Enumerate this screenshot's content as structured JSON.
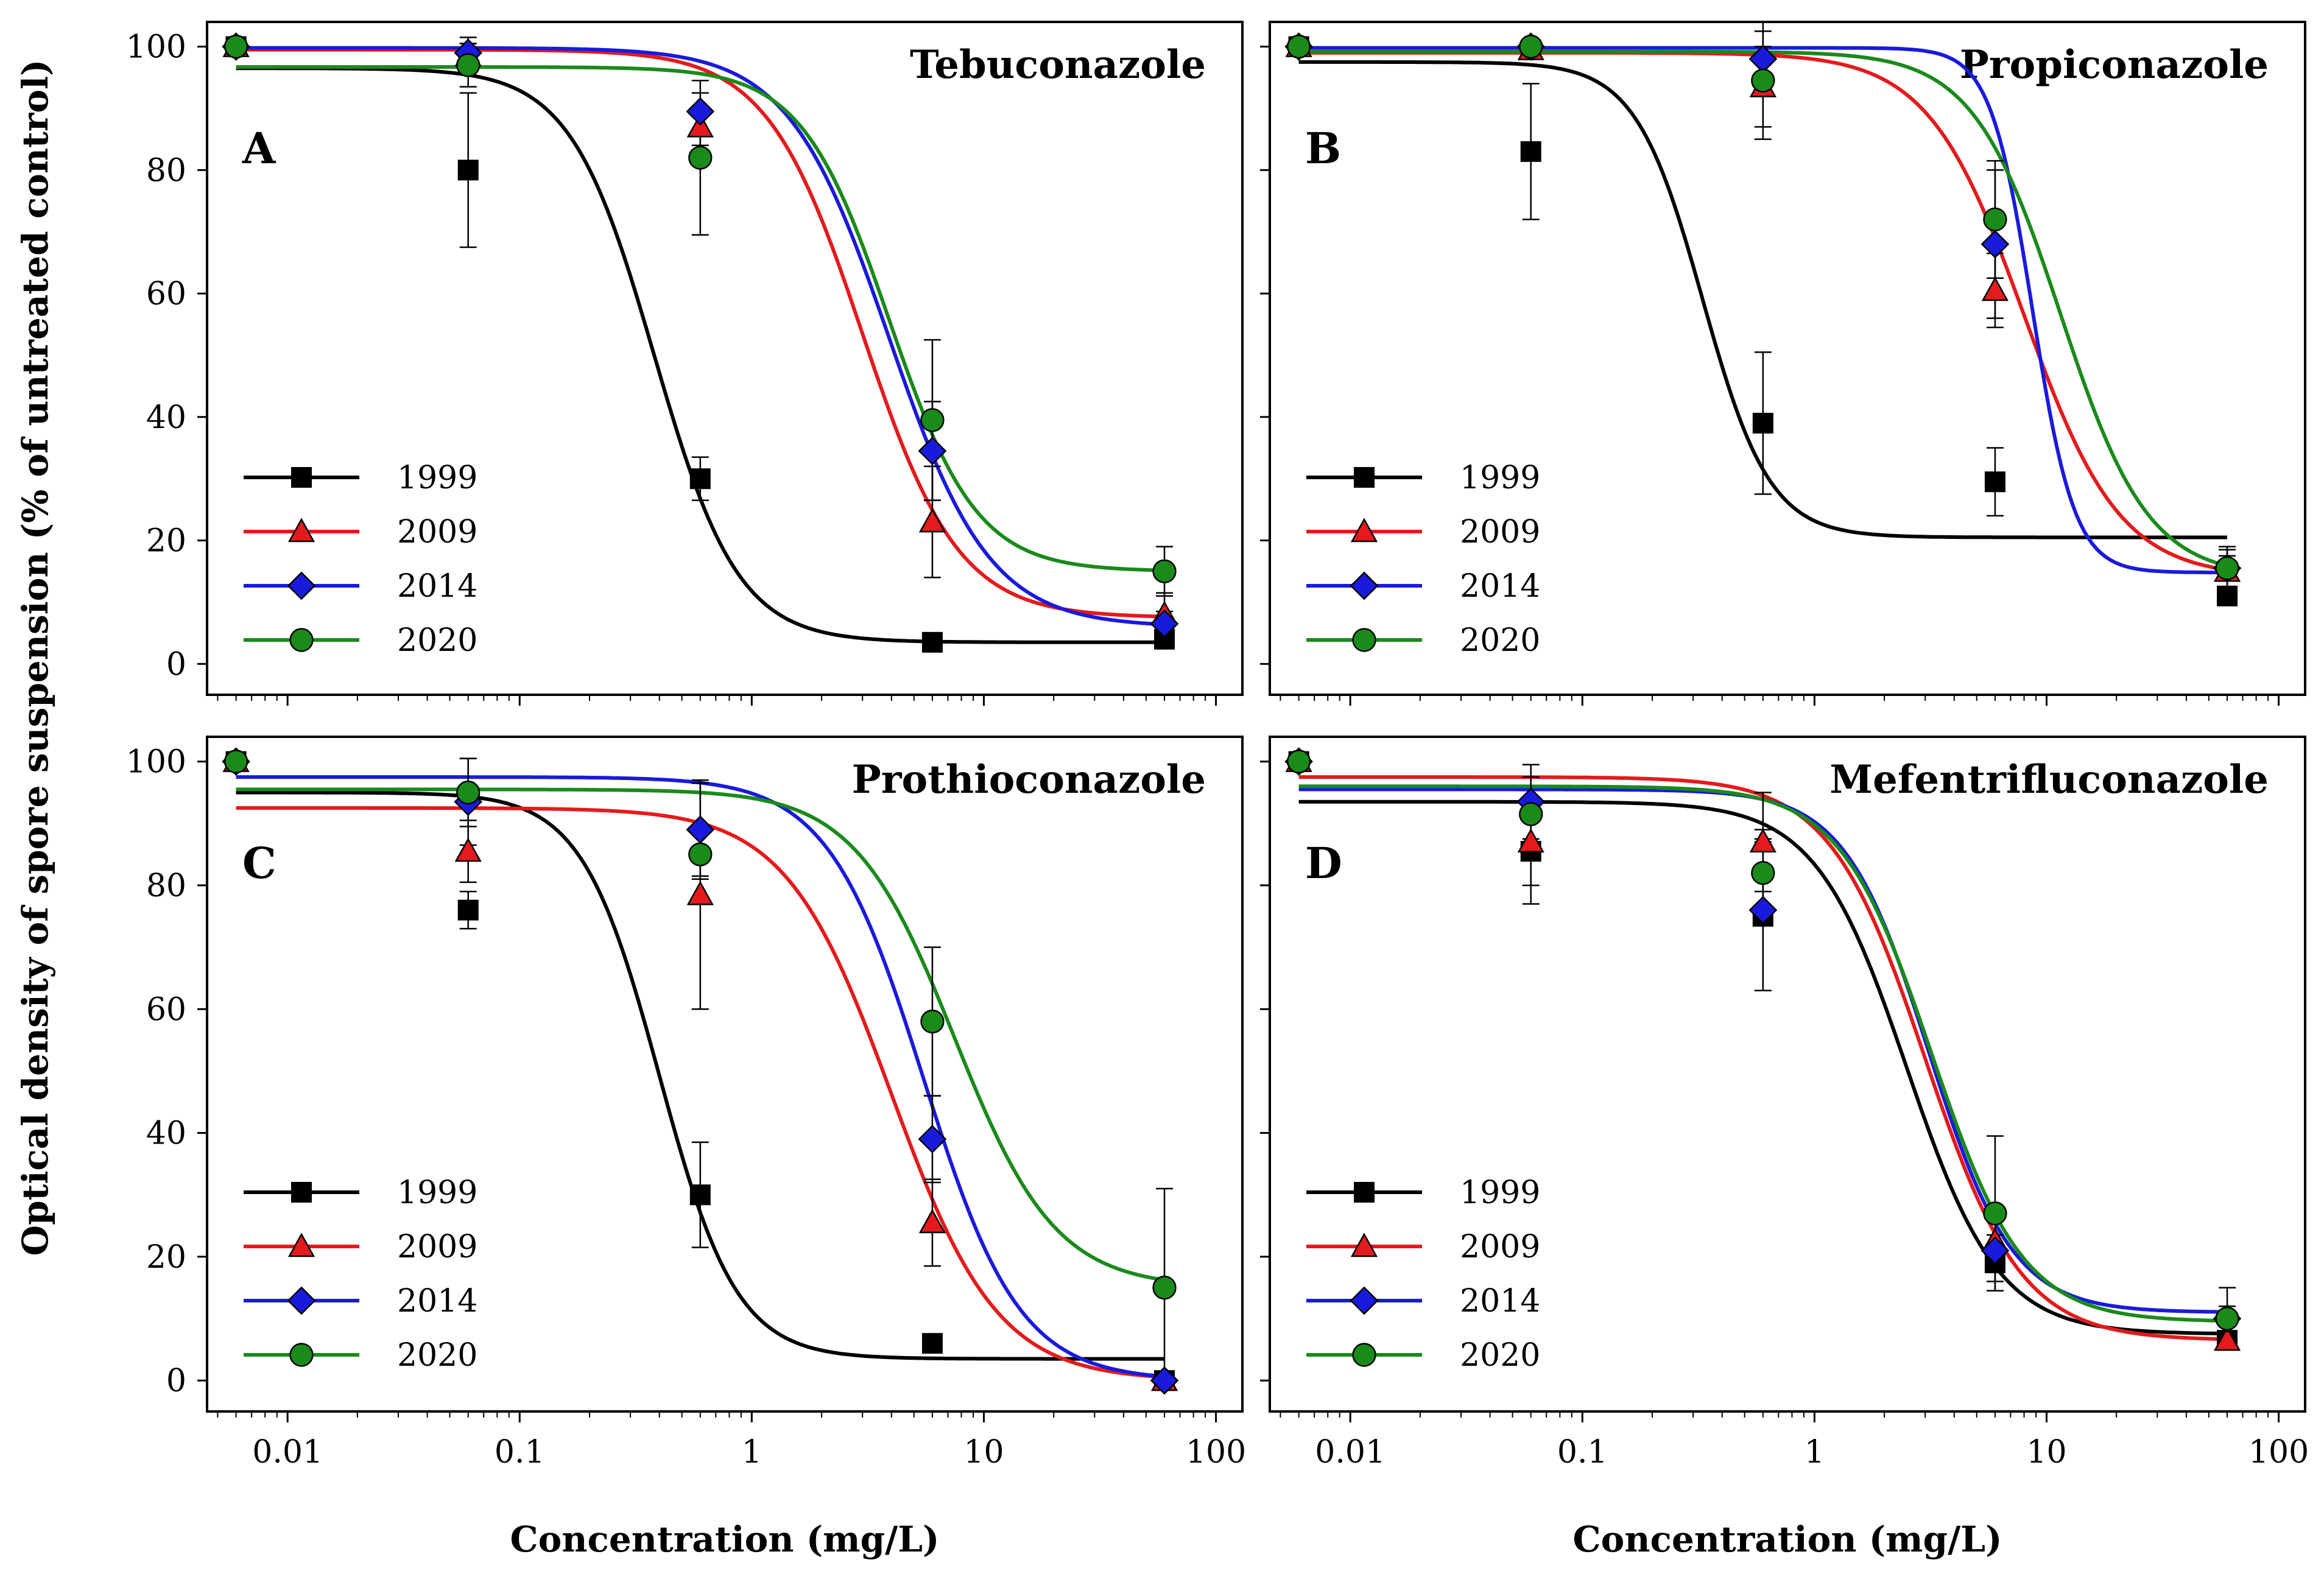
{
  "figure": {
    "y_axis_label": "Optical density of spore suspension (% of untreated control)",
    "x_axis_label": "Concentration (mg/L)"
  },
  "series_colors": {
    "1999": "#000000",
    "2009": "#e41a1c",
    "2014": "#1a1adc",
    "2020": "#1a8a1a"
  },
  "series_markers": {
    "1999": "square",
    "2009": "triangle",
    "2014": "diamond",
    "2020": "circle"
  },
  "chart_data": [
    {
      "type": "scatter",
      "title": "Tebuconazole",
      "letter": "A",
      "xscale": "log",
      "xlim": [
        0.0045,
        130
      ],
      "ylim": [
        -5,
        104
      ],
      "xticks": [
        0.01,
        0.1,
        1,
        10,
        100
      ],
      "xtick_labels": [
        "0.01",
        "0.1",
        "1",
        "10",
        "100"
      ],
      "yticks": [
        0,
        20,
        40,
        60,
        80,
        100
      ],
      "ytick_labels": [
        "0",
        "20",
        "40",
        "60",
        "80",
        "100"
      ],
      "show_x_tick_labels": false,
      "show_y_tick_labels": true,
      "show_x_label": false,
      "x": [
        0.006,
        0.06,
        0.6,
        6,
        60
      ],
      "series": [
        {
          "name": "1999",
          "values": [
            100,
            80,
            30,
            3.5,
            4
          ],
          "errors": [
            0,
            12.5,
            3.5,
            0,
            0
          ],
          "curve": {
            "bottom": 3.5,
            "top": 96.5,
            "ec50": 0.38,
            "slope": 2.4
          }
        },
        {
          "name": "2009",
          "values": [
            100,
            98.5,
            87,
            23,
            8
          ],
          "errors": [
            0,
            2,
            3,
            9,
            3.5
          ],
          "curve": {
            "bottom": 7.5,
            "top": 99.5,
            "ec50": 3.0,
            "slope": 2.1
          }
        },
        {
          "name": "2014",
          "values": [
            100,
            99,
            89.5,
            34.5,
            6.5
          ],
          "errors": [
            0,
            2.5,
            3,
            8,
            2
          ],
          "curve": {
            "bottom": 6,
            "top": 99.8,
            "ec50": 3.9,
            "slope": 2.0
          }
        },
        {
          "name": "2020",
          "values": [
            100,
            97,
            82,
            39.5,
            15
          ],
          "errors": [
            0,
            3.5,
            12.5,
            13,
            4
          ],
          "curve": {
            "bottom": 15,
            "top": 96.7,
            "ec50": 3.9,
            "slope": 2.3
          }
        }
      ]
    },
    {
      "type": "scatter",
      "title": "Propiconazole",
      "letter": "B",
      "xscale": "log",
      "xlim": [
        0.0045,
        130
      ],
      "ylim": [
        -5,
        104
      ],
      "xticks": [
        0.01,
        0.1,
        1,
        10,
        100
      ],
      "xtick_labels": [
        "0.01",
        "0.1",
        "1",
        "10",
        "100"
      ],
      "yticks": [
        0,
        20,
        40,
        60,
        80,
        100
      ],
      "ytick_labels": [
        "0",
        "20",
        "40",
        "60",
        "80",
        "100"
      ],
      "show_x_tick_labels": false,
      "show_y_tick_labels": false,
      "show_x_label": false,
      "x": [
        0.006,
        0.06,
        0.6,
        6,
        60
      ],
      "series": [
        {
          "name": "1999",
          "values": [
            100,
            83,
            39,
            29.5,
            11
          ],
          "errors": [
            0,
            11,
            11.5,
            5.5,
            1.5
          ],
          "curve": {
            "bottom": 20.5,
            "top": 97.5,
            "ec50": 0.33,
            "slope": 3.0
          }
        },
        {
          "name": "2009",
          "values": [
            100,
            99.5,
            93.5,
            60.5,
            15
          ],
          "errors": [
            0,
            1,
            6.5,
            6,
            4
          ],
          "curve": {
            "bottom": 14,
            "top": 99,
            "ec50": 8.0,
            "slope": 2.1
          }
        },
        {
          "name": "2014",
          "values": [
            100,
            100,
            98,
            68,
            15.5
          ],
          "errors": [
            0,
            0,
            4.5,
            12,
            3
          ],
          "curve": {
            "bottom": 14.8,
            "top": 99.8,
            "ec50": 8.7,
            "slope": 4.8
          }
        },
        {
          "name": "2020",
          "values": [
            100,
            100,
            94.5,
            72,
            15.5
          ],
          "errors": [
            0,
            0,
            9.5,
            9.5,
            2
          ],
          "curve": {
            "bottom": 14,
            "top": 99.2,
            "ec50": 11.5,
            "slope": 2.3
          }
        }
      ]
    },
    {
      "type": "scatter",
      "title": "Prothioconazole",
      "letter": "C",
      "xscale": "log",
      "xlim": [
        0.0045,
        130
      ],
      "ylim": [
        -5,
        104
      ],
      "xticks": [
        0.01,
        0.1,
        1,
        10,
        100
      ],
      "xtick_labels": [
        "0.01",
        "0.1",
        "1",
        "10",
        "100"
      ],
      "yticks": [
        0,
        20,
        40,
        60,
        80,
        100
      ],
      "ytick_labels": [
        "0",
        "20",
        "40",
        "60",
        "80",
        "100"
      ],
      "show_x_tick_labels": true,
      "show_y_tick_labels": true,
      "show_x_label": true,
      "x": [
        0.006,
        0.06,
        0.6,
        6,
        60
      ],
      "series": [
        {
          "name": "1999",
          "values": [
            100,
            76,
            30,
            6,
            0
          ],
          "errors": [
            0,
            3,
            8.5,
            0,
            0
          ],
          "curve": {
            "bottom": 3.5,
            "top": 95,
            "ec50": 0.4,
            "slope": 2.6
          }
        },
        {
          "name": "2009",
          "values": [
            100,
            85.5,
            78.5,
            25.5,
            0
          ],
          "errors": [
            0,
            5,
            18.5,
            7,
            0
          ],
          "curve": {
            "bottom": 0,
            "top": 92.5,
            "ec50": 4.0,
            "slope": 1.9
          }
        },
        {
          "name": "2014",
          "values": [
            100,
            93.5,
            89,
            39,
            0
          ],
          "errors": [
            0,
            7,
            7.5,
            7,
            0
          ],
          "curve": {
            "bottom": 0,
            "top": 97.5,
            "ec50": 5.5,
            "slope": 2.1
          }
        },
        {
          "name": "2020",
          "values": [
            100,
            95,
            85,
            58,
            15
          ],
          "errors": [
            0,
            5.5,
            4,
            12,
            16
          ],
          "curve": {
            "bottom": 15,
            "top": 95.5,
            "ec50": 7.5,
            "slope": 2.0
          }
        }
      ]
    },
    {
      "type": "scatter",
      "title": "Mefentrifluconazole",
      "letter": "D",
      "xscale": "log",
      "xlim": [
        0.0045,
        130
      ],
      "ylim": [
        -5,
        104
      ],
      "xticks": [
        0.01,
        0.1,
        1,
        10,
        100
      ],
      "xtick_labels": [
        "0.01",
        "0.1",
        "1",
        "10",
        "100"
      ],
      "yticks": [
        0,
        20,
        40,
        60,
        80,
        100
      ],
      "ytick_labels": [
        "0",
        "20",
        "40",
        "60",
        "80",
        "100"
      ],
      "show_x_tick_labels": true,
      "show_y_tick_labels": false,
      "show_x_label": true,
      "x": [
        0.006,
        0.06,
        0.6,
        6,
        60
      ],
      "series": [
        {
          "name": "1999",
          "values": [
            100,
            85.5,
            75,
            19,
            6.5
          ],
          "errors": [
            0,
            8.5,
            12,
            4.5,
            1.5
          ],
          "curve": {
            "bottom": 7.5,
            "top": 93.5,
            "ec50": 2.5,
            "slope": 2.2
          }
        },
        {
          "name": "2009",
          "values": [
            100,
            87,
            87,
            22.5,
            6.5
          ],
          "errors": [
            0,
            7,
            8,
            5,
            1.5
          ],
          "curve": {
            "bottom": 6.5,
            "top": 97.5,
            "ec50": 3.0,
            "slope": 2.1
          }
        },
        {
          "name": "2014",
          "values": [
            100,
            93.5,
            76,
            21,
            10
          ],
          "errors": [
            0,
            6,
            13,
            5,
            2
          ],
          "curve": {
            "bottom": 11,
            "top": 95.5,
            "ec50": 3.1,
            "slope": 2.4
          }
        },
        {
          "name": "2020",
          "values": [
            100,
            91.5,
            82,
            27,
            10
          ],
          "errors": [
            0,
            6,
            5.5,
            12.5,
            5
          ],
          "curve": {
            "bottom": 9.5,
            "top": 96,
            "ec50": 3.2,
            "slope": 2.2
          }
        }
      ]
    }
  ]
}
